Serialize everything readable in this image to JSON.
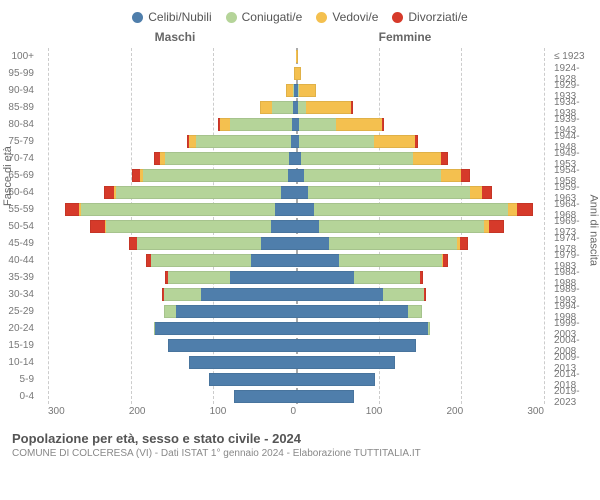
{
  "legend": [
    {
      "label": "Celibi/Nubili",
      "color": "#4f7eab"
    },
    {
      "label": "Coniugati/e",
      "color": "#b5d499"
    },
    {
      "label": "Vedovi/e",
      "color": "#f4c04f"
    },
    {
      "label": "Divorziati/e",
      "color": "#d63a2a"
    }
  ],
  "gender": {
    "male": "Maschi",
    "female": "Femmine"
  },
  "axis_titles": {
    "left": "Fasce di età",
    "right": "Anni di nascita"
  },
  "x_axis": {
    "max": 300,
    "ticks_left": [
      300,
      200,
      100,
      0
    ],
    "ticks_right": [
      0,
      100,
      200,
      300
    ]
  },
  "colors": {
    "single": "#4f7eab",
    "married": "#b5d499",
    "widowed": "#f4c04f",
    "divorced": "#d63a2a",
    "grid": "#cccccc",
    "center": "#aaaaaa",
    "bg": "#ffffff"
  },
  "rows": [
    {
      "age": "100+",
      "birth": "≤ 1923",
      "m": [
        0,
        0,
        0,
        0
      ],
      "f": [
        0,
        0,
        2,
        0
      ]
    },
    {
      "age": "95-99",
      "birth": "1924-1928",
      "m": [
        0,
        0,
        3,
        0
      ],
      "f": [
        0,
        0,
        6,
        0
      ]
    },
    {
      "age": "90-94",
      "birth": "1929-1933",
      "m": [
        2,
        2,
        8,
        0
      ],
      "f": [
        2,
        2,
        20,
        0
      ]
    },
    {
      "age": "85-89",
      "birth": "1934-1938",
      "m": [
        4,
        25,
        15,
        0
      ],
      "f": [
        2,
        10,
        55,
        2
      ]
    },
    {
      "age": "80-84",
      "birth": "1939-1943",
      "m": [
        5,
        75,
        12,
        2
      ],
      "f": [
        4,
        45,
        55,
        3
      ]
    },
    {
      "age": "75-79",
      "birth": "1944-1948",
      "m": [
        6,
        115,
        8,
        3
      ],
      "f": [
        4,
        90,
        50,
        4
      ]
    },
    {
      "age": "70-74",
      "birth": "1949-1953",
      "m": [
        8,
        150,
        6,
        8
      ],
      "f": [
        6,
        135,
        35,
        8
      ]
    },
    {
      "age": "65-69",
      "birth": "1954-1958",
      "m": [
        10,
        175,
        4,
        10
      ],
      "f": [
        10,
        165,
        25,
        10
      ]
    },
    {
      "age": "60-64",
      "birth": "1959-1963",
      "m": [
        18,
        200,
        2,
        12
      ],
      "f": [
        15,
        195,
        15,
        12
      ]
    },
    {
      "age": "55-59",
      "birth": "1964-1968",
      "m": [
        25,
        235,
        2,
        18
      ],
      "f": [
        22,
        235,
        10,
        20
      ]
    },
    {
      "age": "50-54",
      "birth": "1969-1973",
      "m": [
        30,
        200,
        1,
        18
      ],
      "f": [
        28,
        200,
        6,
        18
      ]
    },
    {
      "age": "45-49",
      "birth": "1974-1978",
      "m": [
        42,
        150,
        0,
        10
      ],
      "f": [
        40,
        155,
        3,
        10
      ]
    },
    {
      "age": "40-44",
      "birth": "1979-1983",
      "m": [
        55,
        120,
        0,
        6
      ],
      "f": [
        52,
        125,
        1,
        6
      ]
    },
    {
      "age": "35-39",
      "birth": "1984-1988",
      "m": [
        80,
        75,
        0,
        4
      ],
      "f": [
        70,
        80,
        0,
        4
      ]
    },
    {
      "age": "30-34",
      "birth": "1989-1993",
      "m": [
        115,
        45,
        0,
        2
      ],
      "f": [
        105,
        50,
        0,
        2
      ]
    },
    {
      "age": "25-29",
      "birth": "1994-1998",
      "m": [
        145,
        15,
        0,
        0
      ],
      "f": [
        135,
        18,
        0,
        0
      ]
    },
    {
      "age": "20-24",
      "birth": "1999-2003",
      "m": [
        170,
        2,
        0,
        0
      ],
      "f": [
        160,
        2,
        0,
        0
      ]
    },
    {
      "age": "15-19",
      "birth": "2004-2008",
      "m": [
        155,
        0,
        0,
        0
      ],
      "f": [
        145,
        0,
        0,
        0
      ]
    },
    {
      "age": "10-14",
      "birth": "2009-2013",
      "m": [
        130,
        0,
        0,
        0
      ],
      "f": [
        120,
        0,
        0,
        0
      ]
    },
    {
      "age": "5-9",
      "birth": "2014-2018",
      "m": [
        105,
        0,
        0,
        0
      ],
      "f": [
        95,
        0,
        0,
        0
      ]
    },
    {
      "age": "0-4",
      "birth": "2019-2023",
      "m": [
        75,
        0,
        0,
        0
      ],
      "f": [
        70,
        0,
        0,
        0
      ]
    }
  ],
  "footer": {
    "title": "Popolazione per età, sesso e stato civile - 2024",
    "subtitle": "COMUNE DI COLCERESA (VI) - Dati ISTAT 1° gennaio 2024 - Elaborazione TUTTITALIA.IT"
  }
}
